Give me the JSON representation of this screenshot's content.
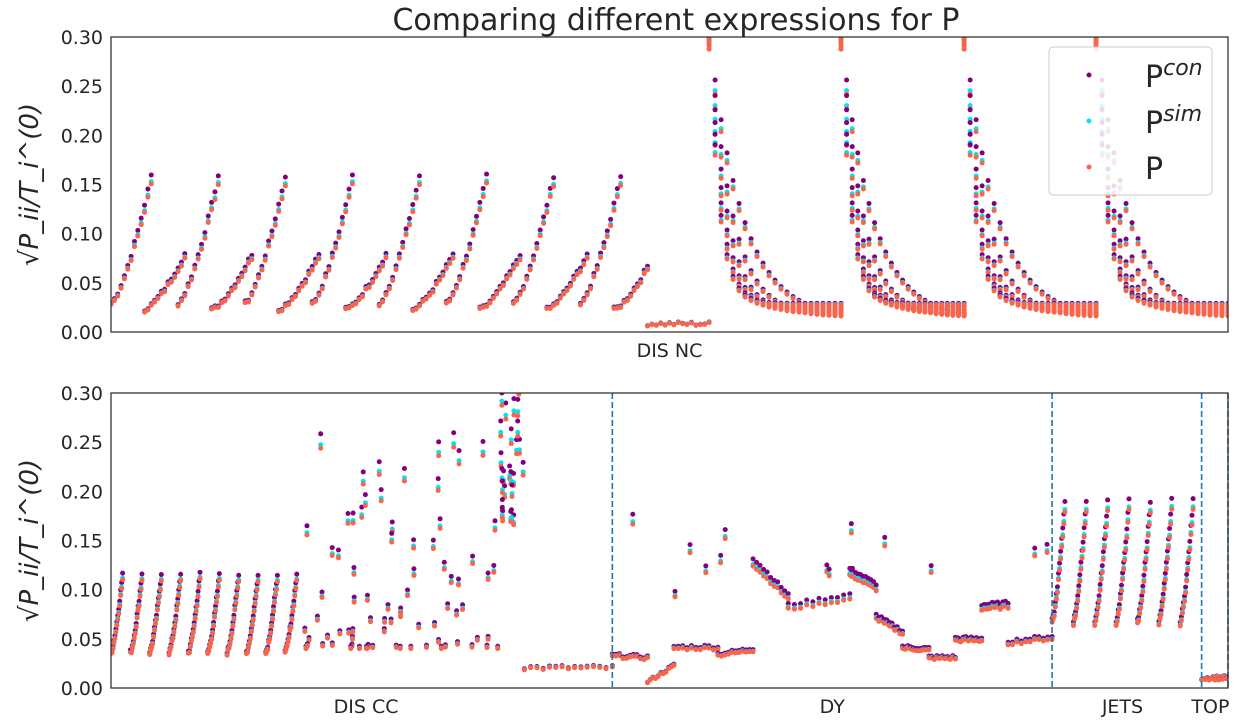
{
  "chart_data": [
    {
      "type": "scatter",
      "title": "Comparing different expressions for P",
      "ylabel": "√P_ii/T_i^(0)",
      "ylim": [
        0,
        0.3
      ],
      "yticks": [
        "0.00",
        "0.05",
        "0.10",
        "0.15",
        "0.20",
        "0.25",
        "0.30"
      ],
      "x_group_labels": [
        "DIS NC"
      ],
      "legend": {
        "placement": "top-right",
        "entries": [
          {
            "base": "P",
            "sup": "con",
            "color": "#800080"
          },
          {
            "base": "P",
            "sup": "sim",
            "color": "#00e5ee"
          },
          {
            "base": "P",
            "sup": "",
            "color": "#ff6347"
          }
        ]
      },
      "series": [
        {
          "name": "P^con",
          "color": "#800080"
        },
        {
          "name": "P^sim",
          "color": "#00e5ee"
        },
        {
          "name": "P",
          "color": "#ff6347"
        }
      ],
      "segments": [
        {
          "kind": "ramps",
          "x0": 0,
          "x1": 61,
          "count": 8,
          "lo": 0.028,
          "hi": 0.15
        },
        {
          "kind": "ramps",
          "x0": 0,
          "x1": 61,
          "count": 8,
          "lo": 0.022,
          "hi": 0.075,
          "offset": 0.5
        },
        {
          "kind": "flat",
          "x0": 61,
          "x1": 68,
          "y": 0.008
        },
        {
          "kind": "decay",
          "x0": 68,
          "x1": 83,
          "lo": 0.012,
          "hi": 0.3,
          "tail": 0.025
        },
        {
          "kind": "decay",
          "x0": 83,
          "x1": 97,
          "lo": 0.012,
          "hi": 0.3,
          "tail": 0.025
        },
        {
          "kind": "decay",
          "x0": 97,
          "x1": 112,
          "lo": 0.012,
          "hi": 0.3,
          "tail": 0.025
        },
        {
          "kind": "decay",
          "x0": 112,
          "x1": 127,
          "lo": 0.012,
          "hi": 0.3,
          "tail": 0.025
        }
      ],
      "xrange": [
        0,
        127
      ]
    },
    {
      "type": "scatter",
      "title": "",
      "ylabel": "√P_ii/T_i^(0)",
      "ylim": [
        0,
        0.3
      ],
      "yticks": [
        "0.00",
        "0.05",
        "0.10",
        "0.15",
        "0.20",
        "0.25",
        "0.30"
      ],
      "x_group_labels": [
        "DIS CC",
        "DY",
        "JETS",
        "TOP"
      ],
      "group_label_positions": [
        29,
        82,
        115,
        125
      ],
      "dividers": [
        57,
        107,
        124,
        127
      ],
      "series": [
        {
          "name": "P^con",
          "color": "#800080"
        },
        {
          "name": "P^sim",
          "color": "#00e5ee"
        },
        {
          "name": "P",
          "color": "#ff6347"
        }
      ],
      "segments": [
        {
          "kind": "ramps",
          "x0": 0,
          "x1": 22,
          "count": 10,
          "lo": 0.035,
          "hi": 0.11
        },
        {
          "kind": "scatter_band",
          "x0": 22,
          "x1": 44,
          "lo": 0.04,
          "hi": 0.26
        },
        {
          "kind": "spike",
          "x0": 44,
          "x1": 47,
          "lo": 0.16,
          "hi": 0.3
        },
        {
          "kind": "flat",
          "x0": 47,
          "x1": 57,
          "y": 0.02
        },
        {
          "kind": "dy",
          "x0": 57,
          "x1": 107
        },
        {
          "kind": "ramps",
          "x0": 107,
          "x1": 124,
          "count": 7,
          "lo": 0.065,
          "hi": 0.18
        },
        {
          "kind": "flat",
          "x0": 124,
          "x1": 127,
          "y": 0.01
        }
      ],
      "xrange": [
        0,
        127
      ]
    }
  ]
}
